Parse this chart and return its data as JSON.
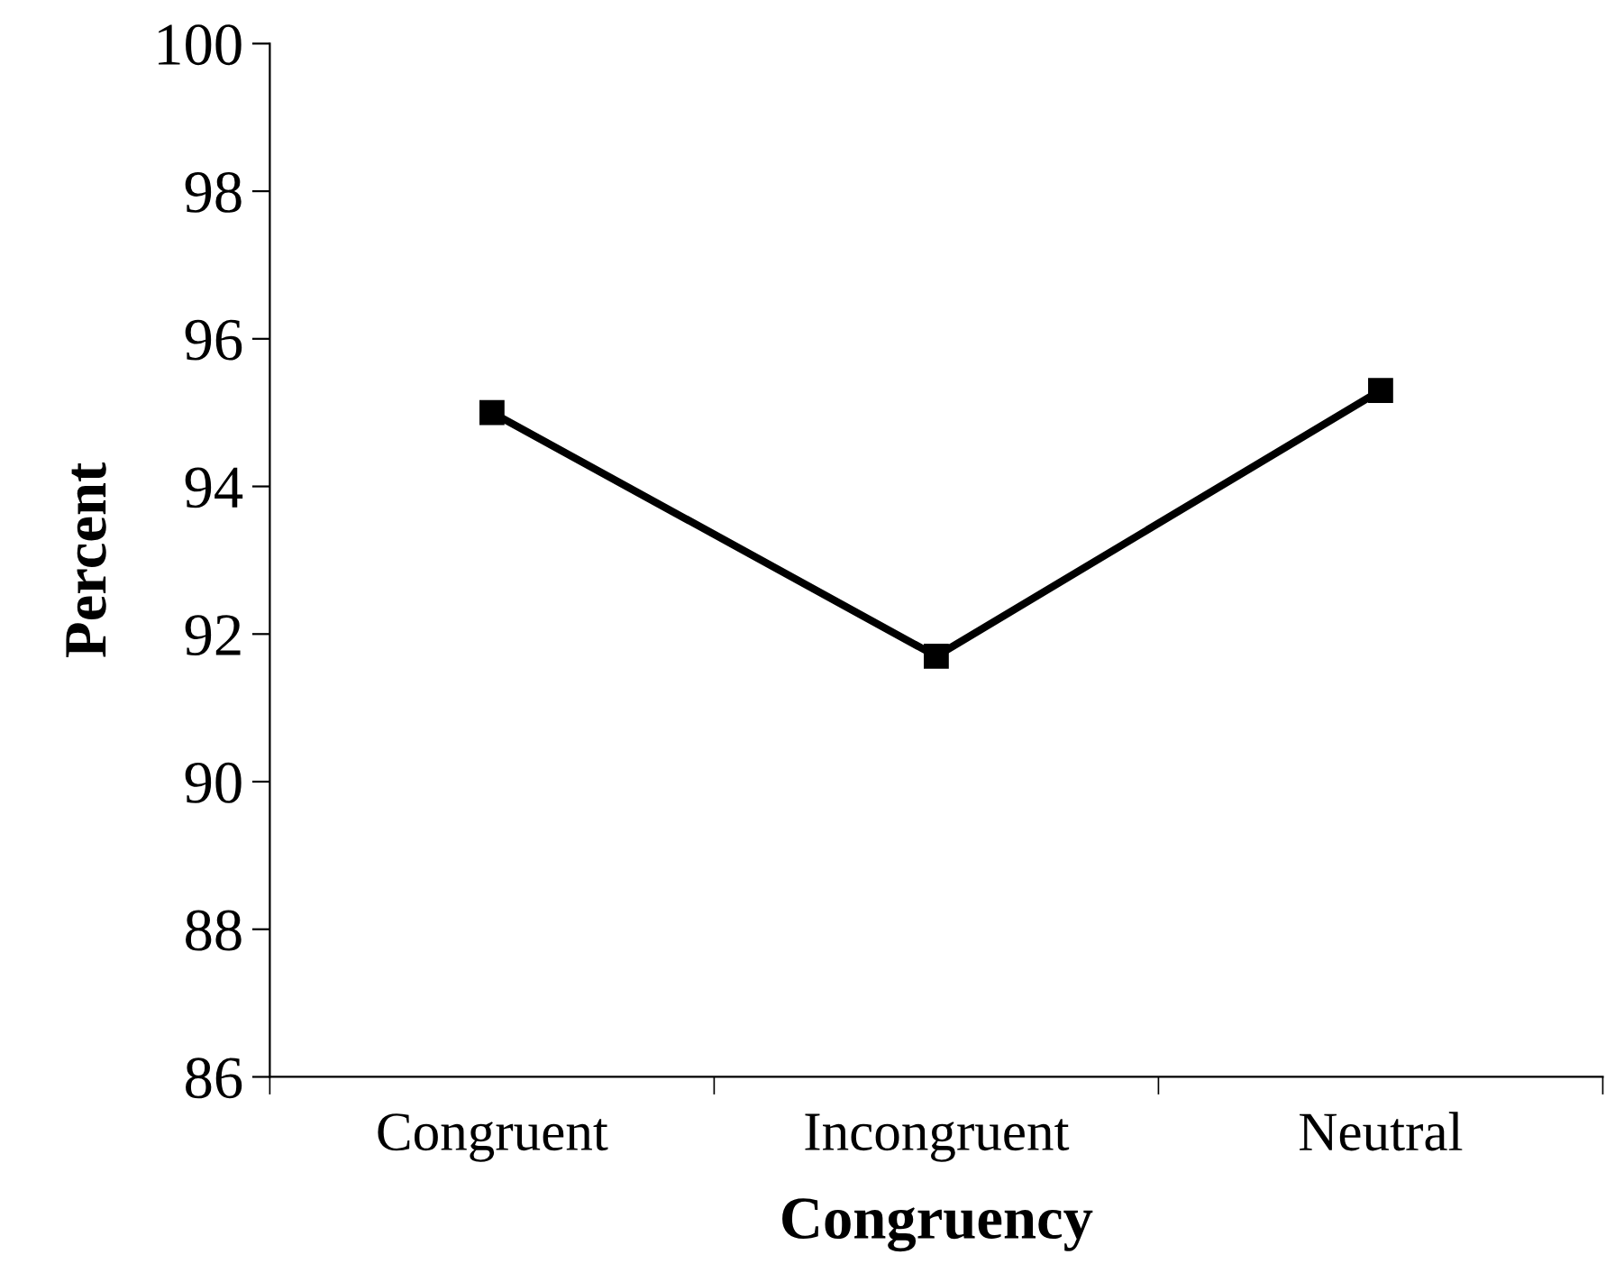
{
  "chart_data": {
    "type": "line",
    "xlabel": "Congruency",
    "ylabel": "Percent",
    "categories": [
      "Congruent",
      "Incongruent",
      "Neutral"
    ],
    "series": [
      {
        "color": "#000000",
        "values": [
          95.0,
          91.7,
          95.3
        ]
      }
    ],
    "ylim": [
      86,
      100
    ],
    "yticks": [
      86,
      88,
      90,
      92,
      94,
      96,
      98,
      100
    ],
    "grid": false,
    "legend": false,
    "marker": "square",
    "line_style": "solid"
  }
}
